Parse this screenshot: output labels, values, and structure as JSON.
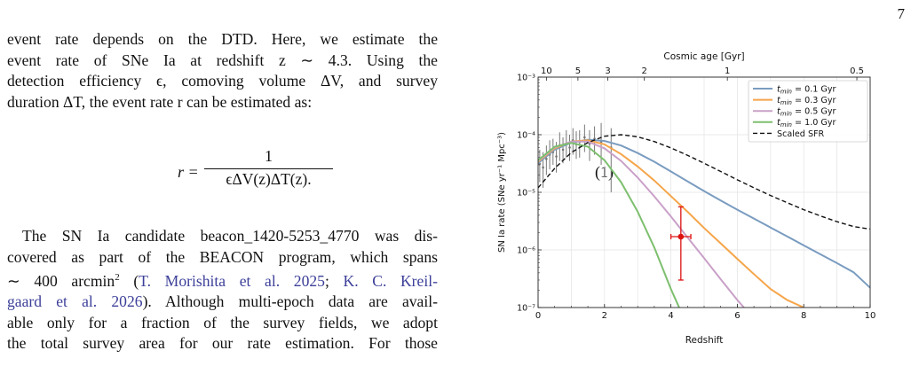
{
  "page_number": "7",
  "para1_lines": [
    "event rate depends on the DTD. Here, we estimate the",
    "event rate of SNe Ia at redshift z ∼ 4.3. Using the",
    "detection efficiency ϵ, comoving volume ΔV, and survey",
    "duration ΔT, the event rate r can be estimated as:"
  ],
  "equation": {
    "lhs": "r =",
    "numerator": "1",
    "denominator": "ϵΔV(z)ΔT(z)",
    "tail": ".",
    "number": "(1)"
  },
  "para2": {
    "l1": "The SN Ia candidate beacon_1420-5253_4770 was dis-",
    "l2": "covered as part of the BEACON program, which spans",
    "l3_a": "∼ 400 arcmin",
    "l3_sup": "2",
    "l3_b": " (",
    "l3_cite1": "T. Morishita et al. 2025",
    "l3_c": "; ",
    "l3_cite2": "K. C. Kreil-",
    "l4_cite": "gaard et al. 2026",
    "l4_b": "). Although multi-epoch data are avail-",
    "l5": "able only for a fraction of the survey fields, we adopt",
    "l6": "the total survey area for our rate estimation. For those"
  },
  "chart_data": {
    "type": "line",
    "xlabel": "Redshift",
    "ylabel": "SN Ia rate  (SNe yr⁻¹ Mpc⁻³)",
    "top_axis_label": "Cosmic age [Gyr]",
    "xlim": [
      0,
      10
    ],
    "ylim": [
      1e-07,
      0.001
    ],
    "yscale": "log",
    "grid": true,
    "legend_position": "top-right",
    "x_ticks": [
      "0",
      "2",
      "4",
      "6",
      "8",
      "10"
    ],
    "y_ticks": [
      "10⁻⁷",
      "10⁻⁶",
      "10⁻⁵",
      "10⁻⁴",
      "10⁻³"
    ],
    "top_ticks": [
      {
        "label": "10",
        "z": 0.25
      },
      {
        "label": "5",
        "z": 1.2
      },
      {
        "label": "3",
        "z": 2.1
      },
      {
        "label": "2",
        "z": 3.2
      },
      {
        "label": "1",
        "z": 5.7
      },
      {
        "label": "0.5",
        "z": 9.6
      }
    ],
    "series": [
      {
        "name": "t_min = 0.1 Gyr",
        "label_sub": "min",
        "label_rest": " = 0.1 Gyr",
        "color": "#7a9cc0",
        "dash": "",
        "x": [
          0,
          0.5,
          1,
          1.5,
          2,
          2.5,
          3,
          3.5,
          4,
          4.5,
          5,
          5.5,
          6,
          6.5,
          7,
          7.5,
          8,
          8.5,
          9,
          9.5,
          10
        ],
        "y": [
          3.2e-05,
          5.5e-05,
          7.3e-05,
          8.2e-05,
          7.8e-05,
          6.5e-05,
          4.8e-05,
          3.4e-05,
          2.3e-05,
          1.55e-05,
          1.05e-05,
          7.2e-06,
          5e-06,
          3.5e-06,
          2.45e-06,
          1.72e-06,
          1.2e-06,
          8.4e-07,
          5.9e-07,
          4.1e-07,
          2.2e-07
        ]
      },
      {
        "name": "t_min = 0.3 Gyr",
        "label_sub": "min",
        "label_rest": " = 0.3 Gyr",
        "color": "#f5a54a",
        "dash": "",
        "x": [
          0,
          0.5,
          1,
          1.5,
          2,
          2.5,
          3,
          3.5,
          4,
          4.5,
          5,
          5.5,
          6,
          6.5,
          7,
          7.5,
          8
        ],
        "y": [
          3.4e-05,
          5.8e-05,
          7.6e-05,
          8e-05,
          6.8e-05,
          4.6e-05,
          2.8e-05,
          1.6e-05,
          8.6e-06,
          4.6e-06,
          2.4e-06,
          1.3e-06,
          7e-07,
          3.8e-07,
          2.1e-07,
          1.35e-07,
          1e-07
        ]
      },
      {
        "name": "t_min = 0.5 Gyr",
        "label_sub": "min",
        "label_rest": " = 0.5 Gyr",
        "color": "#c9a0c8",
        "dash": "",
        "x": [
          0,
          0.5,
          1,
          1.5,
          2,
          2.5,
          3,
          3.5,
          4,
          4.5,
          5,
          5.5,
          6,
          6.2
        ],
        "y": [
          3.5e-05,
          6e-05,
          7.6e-05,
          7.6e-05,
          5.8e-05,
          3.5e-05,
          1.8e-05,
          8.5e-06,
          3.8e-06,
          1.65e-06,
          7.2e-07,
          3.1e-07,
          1.35e-07,
          1e-07
        ]
      },
      {
        "name": "t_min = 1.0 Gyr",
        "label_sub": "min",
        "label_rest": " = 1.0 Gyr",
        "color": "#7dbf6e",
        "dash": "",
        "x": [
          0,
          0.5,
          1,
          1.5,
          2,
          2.5,
          3,
          3.5,
          4,
          4.25
        ],
        "y": [
          3.6e-05,
          6.2e-05,
          7.2e-05,
          6.2e-05,
          3.6e-05,
          1.5e-05,
          4.6e-06,
          1.1e-06,
          2.1e-07,
          1e-07
        ]
      },
      {
        "name": "Scaled SFR",
        "color": "#111111",
        "dash": "5,3",
        "x": [
          0,
          0.5,
          1,
          1.5,
          2,
          2.5,
          3,
          3.5,
          4,
          4.5,
          5,
          5.5,
          6,
          6.5,
          7,
          7.5,
          8,
          8.5,
          9,
          9.5,
          10
        ],
        "y": [
          1.2e-05,
          2.6e-05,
          4.9e-05,
          7.3e-05,
          9.4e-05,
          0.0001,
          9.2e-05,
          7.6e-05,
          5.9e-05,
          4.4e-05,
          3.2e-05,
          2.3e-05,
          1.65e-05,
          1.2e-05,
          8.8e-06,
          6.6e-06,
          5e-06,
          3.9e-06,
          3.1e-06,
          2.55e-06,
          2.3e-06
        ]
      }
    ],
    "observed": {
      "color": "#777777",
      "points": [
        {
          "x": 0.05,
          "y": 3.1e-05,
          "lo": 1.5e-05,
          "hi": 5.5e-05
        },
        {
          "x": 0.15,
          "y": 2.7e-05,
          "lo": 1.2e-05,
          "hi": 5e-05
        },
        {
          "x": 0.25,
          "y": 3.8e-05,
          "lo": 2e-05,
          "hi": 6.5e-05
        },
        {
          "x": 0.35,
          "y": 4.5e-05,
          "lo": 2.5e-05,
          "hi": 8e-05
        },
        {
          "x": 0.45,
          "y": 5e-05,
          "lo": 3e-05,
          "hi": 8.5e-05
        },
        {
          "x": 0.55,
          "y": 4.2e-05,
          "lo": 2.2e-05,
          "hi": 7.5e-05
        },
        {
          "x": 0.65,
          "y": 6.5e-05,
          "lo": 3.5e-05,
          "hi": 0.00011
        },
        {
          "x": 0.75,
          "y": 5.5e-05,
          "lo": 3.2e-05,
          "hi": 9e-05
        },
        {
          "x": 0.85,
          "y": 7e-05,
          "lo": 4e-05,
          "hi": 0.00012
        },
        {
          "x": 0.95,
          "y": 6e-05,
          "lo": 3.5e-05,
          "hi": 0.0001
        },
        {
          "x": 1.05,
          "y": 8e-05,
          "lo": 4.5e-05,
          "hi": 0.00013
        },
        {
          "x": 1.15,
          "y": 6.8e-05,
          "lo": 3.8e-05,
          "hi": 0.000115
        },
        {
          "x": 1.25,
          "y": 7.5e-05,
          "lo": 4e-05,
          "hi": 0.00012
        },
        {
          "x": 1.4,
          "y": 9e-05,
          "lo": 5e-05,
          "hi": 0.00015
        },
        {
          "x": 1.55,
          "y": 7e-05,
          "lo": 3.5e-05,
          "hi": 0.00012
        },
        {
          "x": 1.7,
          "y": 8.5e-05,
          "lo": 4.5e-05,
          "hi": 0.00014
        },
        {
          "x": 1.9,
          "y": 7.5e-05,
          "lo": 3e-05,
          "hi": 0.00016
        },
        {
          "x": 2.2,
          "y": 6e-05,
          "lo": 1e-05,
          "hi": 0.00013
        }
      ]
    },
    "candidate": {
      "color": "#dd1111",
      "x": 4.3,
      "y": 1.7e-06,
      "xerr": [
        0.3,
        0.3
      ],
      "ylo": 3e-07,
      "yhi": 5.6e-06
    }
  }
}
